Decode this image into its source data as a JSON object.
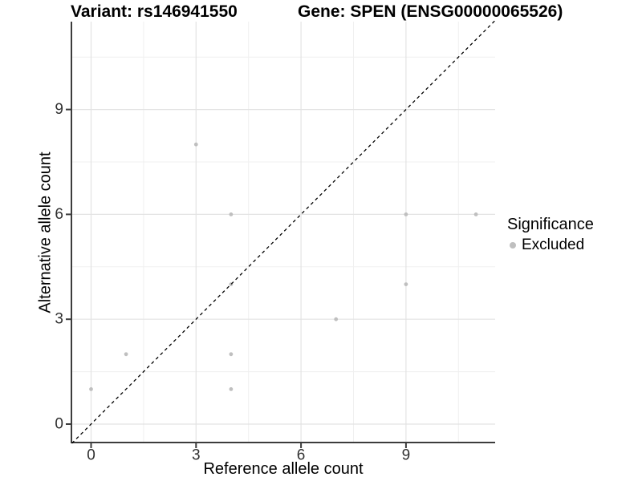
{
  "header": {
    "title_left": "Variant: rs146941550",
    "title_right": "Gene: SPEN (ENSG00000065526)"
  },
  "chart_data": {
    "type": "scatter",
    "xlabel": "Reference allele count",
    "ylabel": "Alternative allele count",
    "xlim": [
      -0.55,
      11.55
    ],
    "ylim": [
      -0.55,
      11.55
    ],
    "x_ticks": [
      0,
      3,
      6,
      9
    ],
    "y_ticks": [
      0,
      3,
      6,
      9
    ],
    "x_minor_ticks": [
      1.5,
      4.5,
      7.5,
      10.5
    ],
    "y_minor_ticks": [
      1.5,
      4.5,
      7.5,
      10.5
    ],
    "grid": true,
    "identity_line": {
      "slope": 1,
      "intercept": 0,
      "style": "dashed",
      "color": "#000000"
    },
    "series": [
      {
        "name": "Excluded",
        "color": "#bfbfbf",
        "points": [
          [
            0,
            1
          ],
          [
            1,
            2
          ],
          [
            3,
            8
          ],
          [
            4,
            1
          ],
          [
            4,
            2
          ],
          [
            4,
            4
          ],
          [
            4,
            6
          ],
          [
            7,
            3
          ],
          [
            9,
            4
          ],
          [
            9,
            6
          ],
          [
            11,
            6
          ]
        ]
      }
    ],
    "legend": {
      "title": "Significance",
      "position": "right",
      "entries": [
        {
          "label": "Excluded",
          "color": "#bfbfbf"
        }
      ]
    }
  },
  "colors": {
    "background": "#ffffff",
    "grid_major": "#e3e3e3",
    "grid_minor": "#f0f0f0",
    "axis_line": "#3c3c3c",
    "tick_text": "#303030",
    "point": "#bfbfbf",
    "identity_line": "#000000"
  }
}
